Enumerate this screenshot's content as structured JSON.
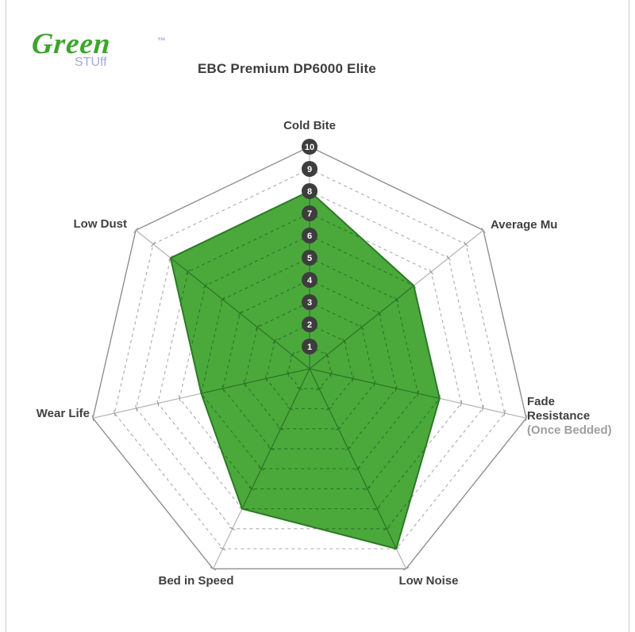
{
  "logo": {
    "green_text": "Green",
    "stuff_main": "STU",
    "stuff_ff": "ff",
    "trademark": "™",
    "green_color": "#3fa32e",
    "purple_color": "#a7a9d6"
  },
  "header": {
    "title": "EBC Premium DP6000 Elite"
  },
  "chart_data": {
    "type": "radar",
    "title": "EBC Premium DP6000 Elite",
    "axes": [
      {
        "label_lines": [
          "Cold Bite"
        ],
        "value": 8
      },
      {
        "label_lines": [
          "Average Mu"
        ],
        "value": 6
      },
      {
        "label_lines": [
          "Fade",
          "Resistance",
          "(Once Bedded)"
        ],
        "value": 6
      },
      {
        "label_lines": [
          "Low Noise"
        ],
        "value": 9
      },
      {
        "label_lines": [
          "Bed in Speed"
        ],
        "value": 7
      },
      {
        "label_lines": [
          "Wear Life"
        ],
        "value": 5
      },
      {
        "label_lines": [
          "Low Dust"
        ],
        "value": 8
      }
    ],
    "scale": {
      "min": 1,
      "max": 10,
      "ticks": [
        1,
        2,
        3,
        4,
        5,
        6,
        7,
        8,
        9,
        10
      ]
    },
    "grid": "dashed-rings",
    "legend": null,
    "colors": {
      "fill": "#4ba93c",
      "stroke": "#2c7a26",
      "grid_dashed": "#ababab",
      "grid_outer": "#8f8f8f",
      "axis_line": "#b3b3b3",
      "axis_tick": "#9a9a9a",
      "grid_on_fill": "#256b20",
      "tick_circle": "#3d3d3d",
      "tick_text": "#ffffff",
      "label": "#3f3f3f",
      "label_muted": "#9f9f9f"
    }
  }
}
